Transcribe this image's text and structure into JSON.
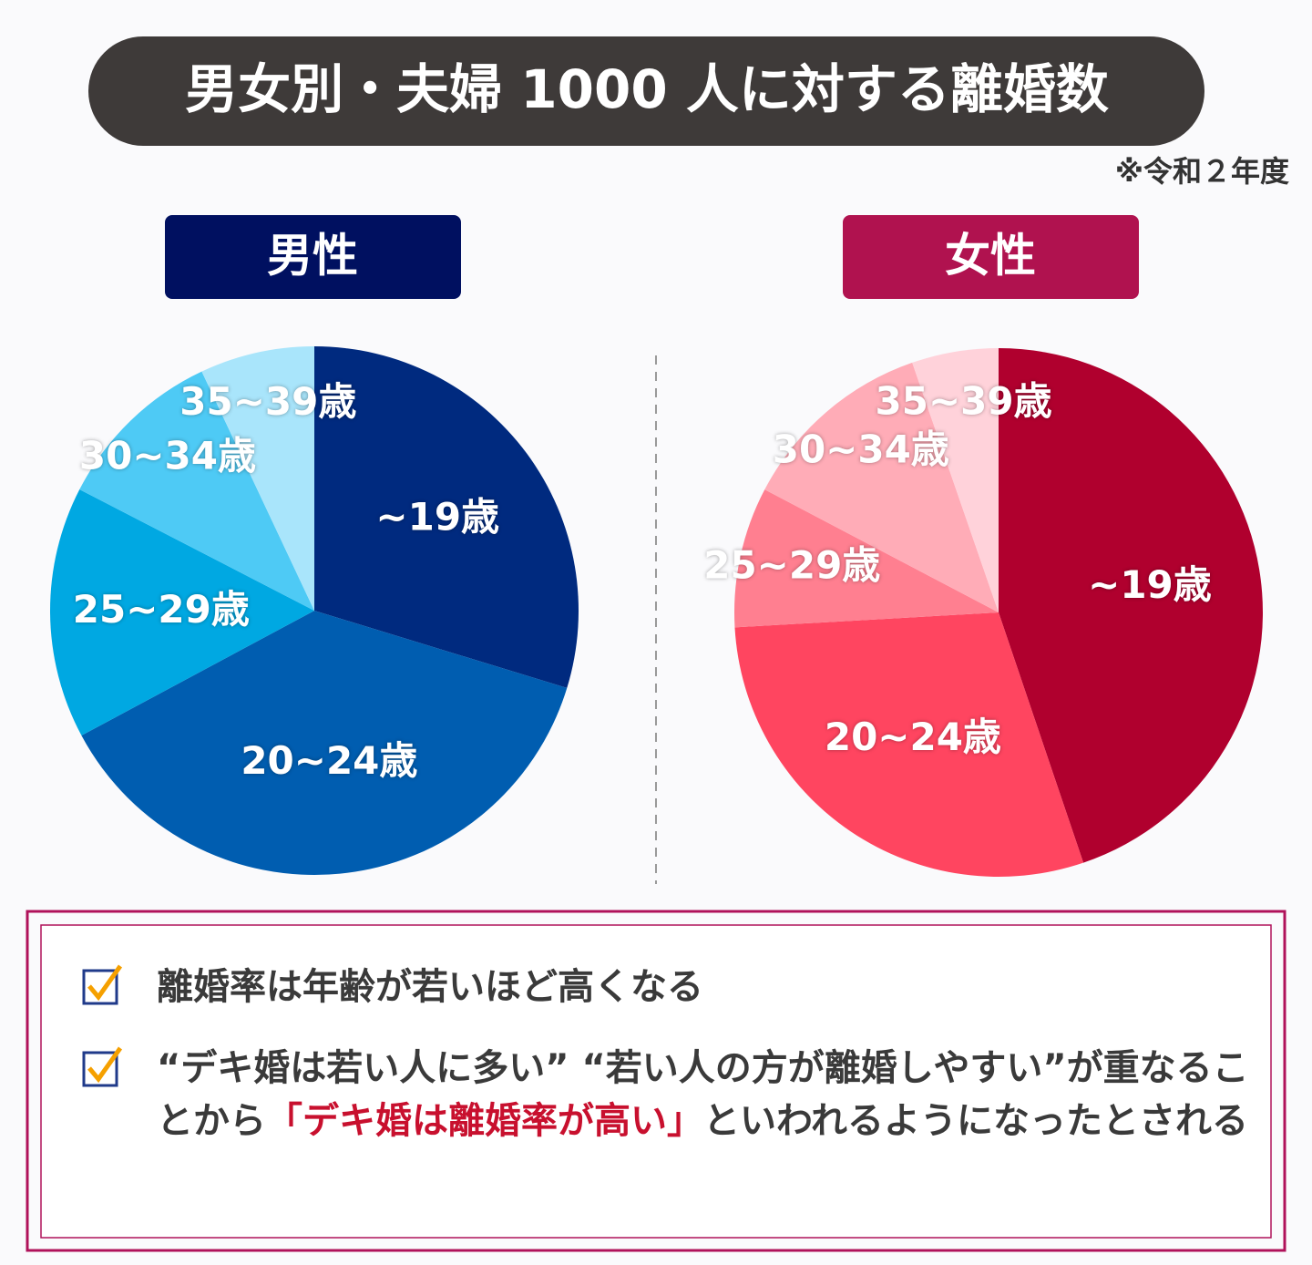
{
  "header": {
    "title": "男女別・夫婦 1000 人に対する離婚数",
    "note": "※令和２年度"
  },
  "chart_data": [
    {
      "type": "pie",
      "title": "男性",
      "title_color": "#001060",
      "categories": [
        "~19歳",
        "20~24歳",
        "25~29歳",
        "30~34歳",
        "35~39歳"
      ],
      "values": [
        29.7,
        37.4,
        15.4,
        10.4,
        7.0
      ],
      "colors": [
        "#002a7f",
        "#005db0",
        "#00a8e2",
        "#4ecaf5",
        "#a9e5fb"
      ]
    },
    {
      "type": "pie",
      "title": "女性",
      "title_color": "#b0124f",
      "categories": [
        "~19歳",
        "20~24歳",
        "25~29歳",
        "30~34歳",
        "35~39歳"
      ],
      "values": [
        44.8,
        29.3,
        8.6,
        12.0,
        5.3
      ],
      "colors": [
        "#b0002e",
        "#ff4560",
        "#ff7f90",
        "#ffacb7",
        "#ffd2da"
      ]
    }
  ],
  "notes": {
    "items": [
      {
        "parts": [
          "離婚率は年齢が若いほど高くなる"
        ]
      },
      {
        "parts": [
          "“デキ婚は若い人に多い” “若い人の方が離婚しやすい”が重なることから",
          "「デキ婚は離婚率が高い」",
          "といわれるようになったとされる"
        ]
      }
    ]
  }
}
